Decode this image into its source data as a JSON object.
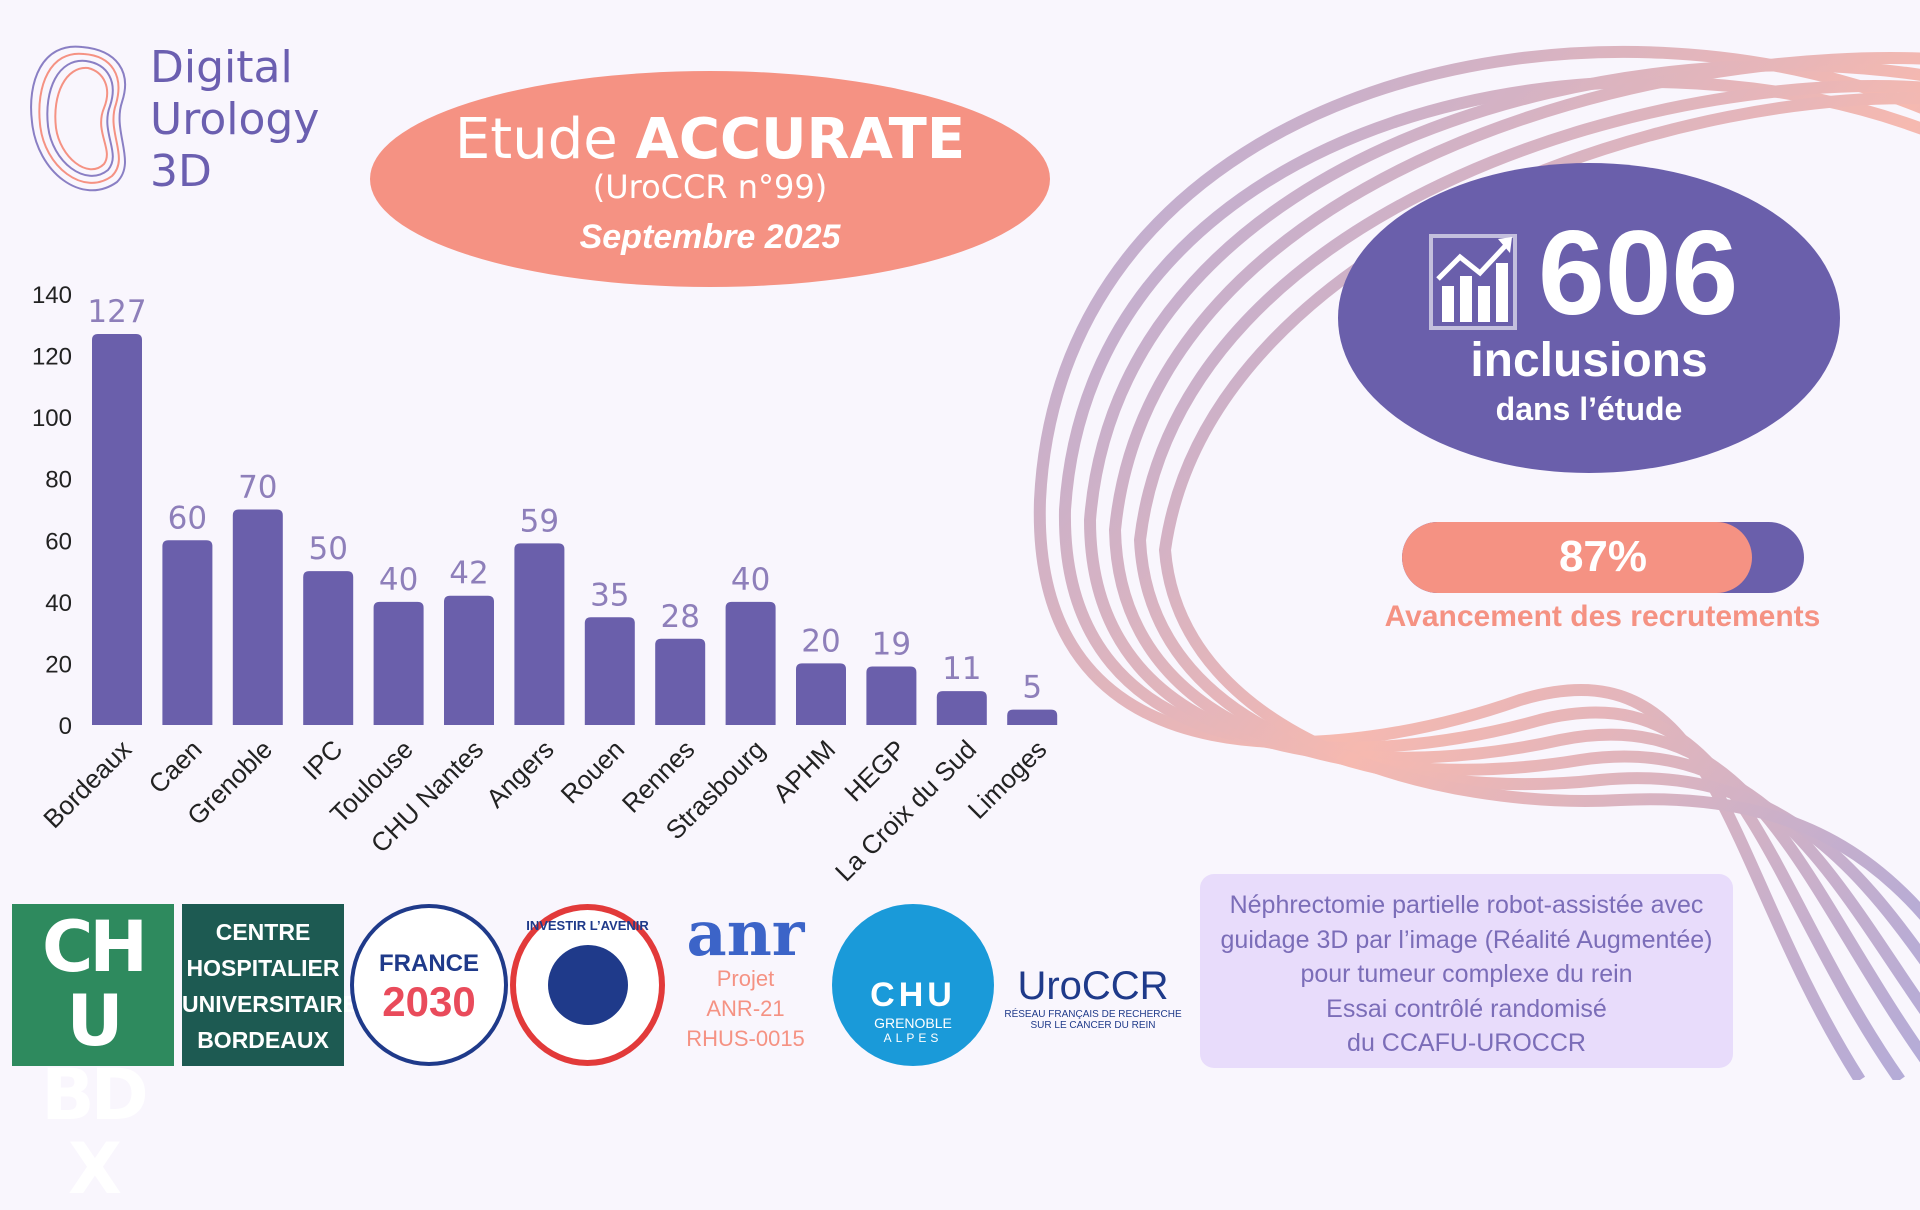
{
  "logo": {
    "line1": "Digital",
    "line2": "Urology",
    "line3": "3D"
  },
  "header": {
    "title_prefix": "Etude",
    "title_bold": "ACCURATE",
    "subtitle": "(UroCCR n°99)",
    "date": "Septembre 2025"
  },
  "inclusions": {
    "icon": "chart-growth-icon",
    "count": "606",
    "label": "inclusions",
    "sublabel": "dans l’étude"
  },
  "progress": {
    "value": 87,
    "label": "87%",
    "caption": "Avancement des recrutements"
  },
  "colors": {
    "purple": "#6a5fab",
    "salmon": "#f59283",
    "label": "#8e7fba"
  },
  "chart_data": {
    "type": "bar",
    "categories": [
      "Bordeaux",
      "Caen",
      "Grenoble",
      "IPC",
      "Toulouse",
      "CHU Nantes",
      "Angers",
      "Rouen",
      "Rennes",
      "Strasbourg",
      "APHM",
      "HEGP",
      "La Croix du Sud",
      "Limoges"
    ],
    "values": [
      127,
      60,
      70,
      50,
      40,
      42,
      59,
      35,
      28,
      40,
      20,
      19,
      11,
      5
    ],
    "ylim": [
      0,
      140
    ],
    "yticks": [
      0,
      20,
      40,
      60,
      80,
      100,
      120,
      140
    ],
    "title": "",
    "xlabel": "",
    "ylabel": ""
  },
  "logos": {
    "chu_bdx": "CHU BDX",
    "chu_bdx_full": [
      "CENTRE",
      "HOSPITALIER",
      "UNIVERSITAIRE",
      "BORDEAUX"
    ],
    "france2030": [
      "FRANCE",
      "2030"
    ],
    "investir": "INVESTIR L’AVENIR",
    "anr": "anr",
    "anr_project": [
      "Projet",
      "ANR-21",
      "RHUS-0015"
    ],
    "chu_grenoble": [
      "CHU",
      "GRENOBLE",
      "ALPES"
    ],
    "uroccr": "UroCCR",
    "uroccr_sub": [
      "RÉSEAU FRANÇAIS DE RECHERCHE",
      "SUR LE CANCER DU REIN"
    ]
  },
  "description": [
    "Néphrectomie partielle robot-assistée avec",
    "guidage 3D par l’image (Réalité Augmentée)",
    "pour tumeur complexe du rein",
    "Essai contrôlé randomisé",
    "du CCAFU-UROCCR"
  ]
}
